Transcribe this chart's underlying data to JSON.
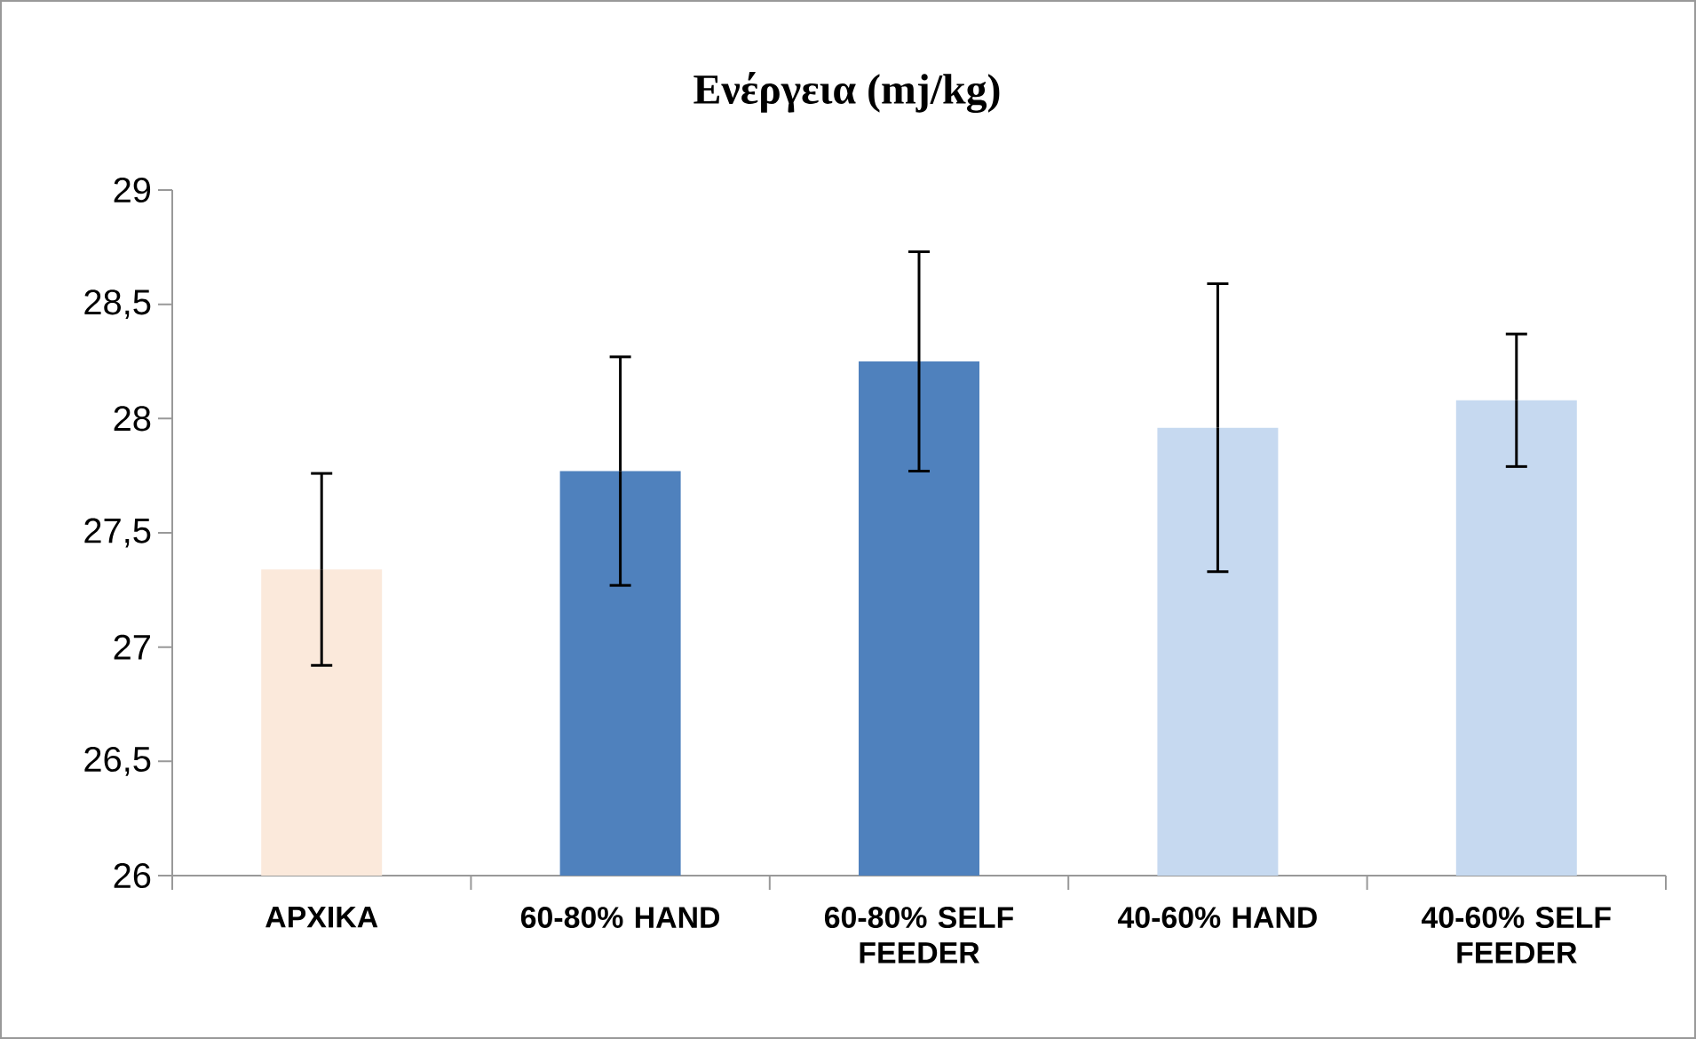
{
  "chart_data": {
    "type": "bar",
    "title": "Ενέργεια (mj/kg)",
    "categories": [
      "ΑΡΧΙΚΑ",
      "60-80% HAND",
      "60-80% SELF FEEDER",
      "40-60% HAND",
      "40-60% SELF FEEDER"
    ],
    "values": [
      27.34,
      27.77,
      28.25,
      27.96,
      28.08
    ],
    "errors": [
      0.42,
      0.5,
      0.48,
      0.63,
      0.29
    ],
    "colors": [
      "#fbe9db",
      "#4f81bd",
      "#4f81bd",
      "#c6d9f0",
      "#c6d9f0"
    ],
    "ylim": [
      26,
      29
    ],
    "yticks": [
      26,
      {
        "value": 26.5,
        "label": "26,5"
      },
      27,
      {
        "value": 27.5,
        "label": "27,5"
      },
      28,
      {
        "value": 28.5,
        "label": "28,5"
      },
      29
    ],
    "grid": false
  }
}
